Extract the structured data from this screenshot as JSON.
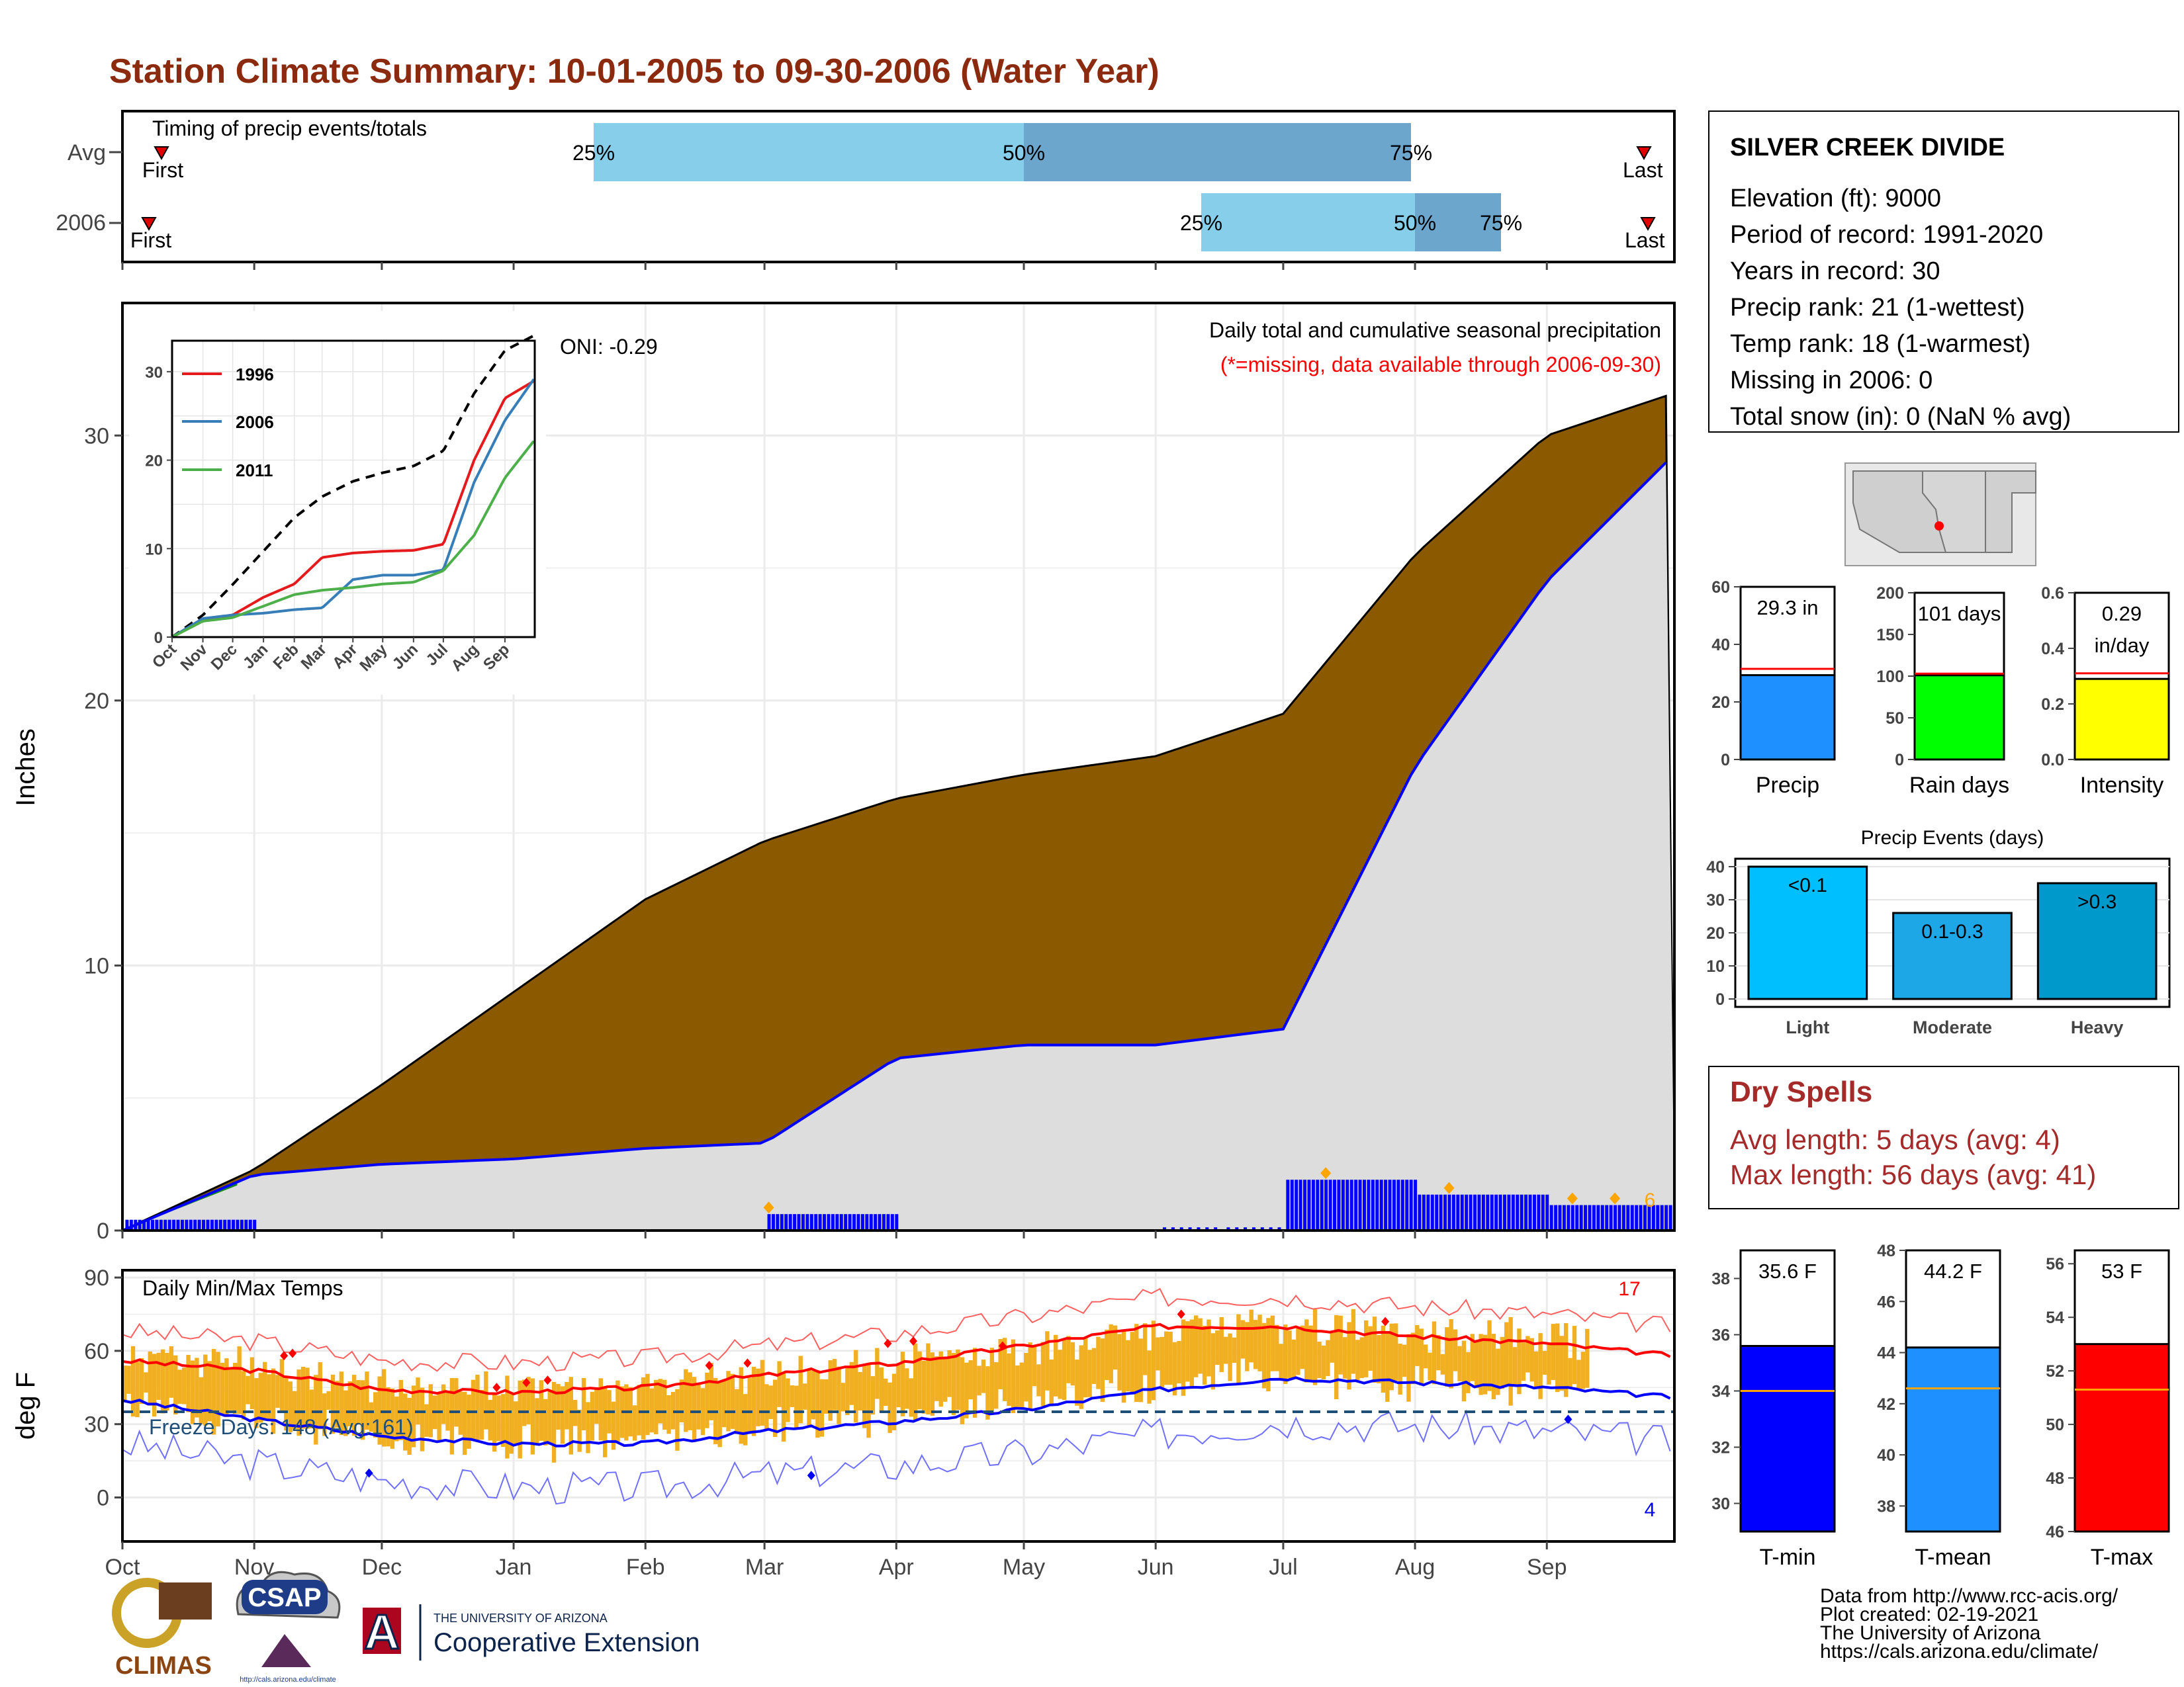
{
  "title": "Station Climate Summary: 10-01-2005 to 09-30-2006 (Water Year)",
  "colors": {
    "title": "#8B2A0E",
    "brown": "#8B5A00",
    "gray_fill": "#DDDDDD",
    "blue_line": "#0000FF",
    "green": "#1A8C1A",
    "light_blue": "#87CEEB",
    "mid_blue": "#6CA6CD",
    "orange": "#FFA500",
    "gold": "#F0B022",
    "red": "#FF0000",
    "dry_spell": "#A52A2A"
  },
  "timing": {
    "label": "Timing of precip events/totals",
    "rows": [
      {
        "name": "Avg",
        "first": "First",
        "last": "Last",
        "q25": "25%",
        "q50": "50%",
        "q75": "75%"
      },
      {
        "name": "2006",
        "first": "First",
        "last": "Last",
        "q25": "25%",
        "q50": "50%",
        "q75": "75%"
      }
    ]
  },
  "station": {
    "name": "SILVER CREEK DIVIDE",
    "lines": [
      "Elevation (ft): 9000",
      "Period of record: 1991-2020",
      "Years in record: 30",
      "Precip rank: 21 (1-wettest)",
      "Temp rank: 18 (1-warmest)",
      "Missing in 2006: 0",
      "Total snow (in): 0 (NaN % avg)"
    ]
  },
  "main_panel": {
    "ylabel": "Inches",
    "oni": "ONI: -0.29",
    "desc": "Daily total and cumulative seasonal precipitation",
    "missing_note": "(*=missing, data available through 2006-09-30)",
    "count_label": "6",
    "y_ticks": [
      "0",
      "10",
      "20",
      "30"
    ]
  },
  "inset": {
    "legend": [
      "1996",
      "2006",
      "2011"
    ],
    "y_ticks": [
      "0",
      "10",
      "20",
      "30"
    ],
    "x_ticks": [
      "Oct",
      "Nov",
      "Dec",
      "Jan",
      "Feb",
      "Mar",
      "Apr",
      "May",
      "Jun",
      "Jul",
      "Aug",
      "Sep"
    ]
  },
  "temp_panel": {
    "ylabel": "deg F",
    "label": "Daily Min/Max Temps",
    "freeze": "Freeze Days: 148 (Avg:161)",
    "hot_count": "17",
    "cold_count": "4",
    "y_ticks": [
      "0",
      "30",
      "60",
      "90"
    ]
  },
  "months": [
    "Oct",
    "Nov",
    "Dec",
    "Jan",
    "Feb",
    "Mar",
    "Apr",
    "May",
    "Jun",
    "Jul",
    "Aug",
    "Sep"
  ],
  "mini_bars": [
    {
      "title": "Precip",
      "label": "29.3 in",
      "ticks": [
        "0",
        "20",
        "40",
        "60"
      ],
      "color": "#1E90FF"
    },
    {
      "title": "Rain days",
      "label": "101 days",
      "ticks": [
        "0",
        "50",
        "100",
        "150",
        "200"
      ],
      "color": "#00FF00"
    },
    {
      "title": "Intensity",
      "label": "0.29 in/day",
      "ticks": [
        "0.0",
        "0.2",
        "0.4",
        "0.6"
      ],
      "color": "#FFFF00"
    }
  ],
  "events": {
    "title": "Precip Events (days)",
    "ticks": [
      "0",
      "10",
      "20",
      "30",
      "40"
    ],
    "bars": [
      {
        "cat": "Light",
        "label": "<0.1",
        "color": "#00BFFF"
      },
      {
        "cat": "Moderate",
        "label": "0.1-0.3",
        "color": "#1EA7E6"
      },
      {
        "cat": "Heavy",
        "label": ">0.3",
        "color": "#0099CC"
      }
    ]
  },
  "dry_spells": {
    "title": "Dry Spells",
    "avg": "Avg length: 5 days (avg: 4)",
    "max": "Max length: 56 days (avg: 41)"
  },
  "temp_bars": [
    {
      "title": "T-min",
      "label": "35.6 F",
      "ticks": [
        "30",
        "32",
        "34",
        "36",
        "38"
      ],
      "color": "#0000FF"
    },
    {
      "title": "T-mean",
      "label": "44.2 F",
      "ticks": [
        "38",
        "40",
        "42",
        "44",
        "46",
        "48"
      ],
      "color": "#1E90FF"
    },
    {
      "title": "T-max",
      "label": "53 F",
      "ticks": [
        "46",
        "48",
        "50",
        "52",
        "54",
        "56"
      ],
      "color": "#FF0000"
    }
  ],
  "footer": {
    "lines": [
      "Data from http://www.rcc-acis.org/",
      "Plot created: 02-19-2021",
      "The University of Arizona",
      "https://cals.arizona.edu/climate/"
    ]
  },
  "logos": {
    "climas": "CLIMAS",
    "csap": "CSAP",
    "csap_url": "http://cals.arizona.edu/climate",
    "ua_small": "THE UNIVERSITY OF ARIZONA",
    "ua_big": "Cooperative Extension",
    "ua_letter": "A"
  },
  "chart_data": [
    {
      "type": "area",
      "title": "Daily total and cumulative seasonal precipitation",
      "ylabel": "Inches",
      "ylim": [
        0,
        35
      ],
      "x": [
        "Oct",
        "Nov",
        "Dec",
        "Jan",
        "Feb",
        "Mar",
        "Apr",
        "May",
        "Jun",
        "Jul",
        "Aug",
        "Sep",
        "end"
      ],
      "series": [
        {
          "name": "Avg cumulative",
          "values": [
            0,
            2.3,
            5.5,
            9.0,
            12.5,
            14.7,
            16.3,
            17.2,
            17.9,
            19.5,
            25.5,
            30.0,
            31.6
          ]
        },
        {
          "name": "2006 cumulative",
          "values": [
            0,
            2.1,
            2.5,
            2.7,
            3.1,
            3.3,
            6.5,
            7.0,
            7.0,
            7.6,
            17.5,
            24.5,
            29.3
          ]
        }
      ]
    },
    {
      "type": "bar",
      "title": "Precip Events (days)",
      "categories": [
        "Light",
        "Moderate",
        "Heavy"
      ],
      "values": [
        40,
        26,
        35
      ],
      "ylim": [
        0,
        40
      ]
    },
    {
      "type": "bar",
      "title": "Precip",
      "categories": [
        "Precip"
      ],
      "values": [
        29.3
      ],
      "reference": 31.5,
      "ylim": [
        0,
        60
      ]
    },
    {
      "type": "bar",
      "title": "Rain days",
      "categories": [
        "Rain days"
      ],
      "values": [
        101
      ],
      "reference": 103,
      "ylim": [
        0,
        200
      ]
    },
    {
      "type": "bar",
      "title": "Intensity",
      "categories": [
        "Intensity"
      ],
      "values": [
        0.29
      ],
      "reference": 0.31,
      "ylim": [
        0,
        0.6
      ]
    },
    {
      "type": "bar",
      "title": "T-min",
      "categories": [
        "T-min"
      ],
      "values": [
        35.6
      ],
      "reference": 34.0,
      "ylim": [
        29,
        39
      ]
    },
    {
      "type": "bar",
      "title": "T-mean",
      "categories": [
        "T-mean"
      ],
      "values": [
        44.2
      ],
      "reference": 42.6,
      "ylim": [
        37,
        48
      ]
    },
    {
      "type": "bar",
      "title": "T-max",
      "categories": [
        "T-max"
      ],
      "values": [
        53
      ],
      "reference": 51.3,
      "ylim": [
        46,
        56.5
      ]
    },
    {
      "type": "line",
      "title": "Daily Min/Max Temps",
      "ylabel": "deg F",
      "ylim": [
        -18,
        93
      ],
      "x": [
        "Oct",
        "Nov",
        "Dec",
        "Jan",
        "Feb",
        "Mar",
        "Apr",
        "May",
        "Jun",
        "Jul",
        "Aug",
        "Sep",
        "end"
      ],
      "series": [
        {
          "name": "Avg max",
          "values": [
            56,
            52,
            44,
            43,
            45,
            50,
            55,
            62,
            70,
            70,
            66,
            63,
            58
          ]
        },
        {
          "name": "Avg min",
          "values": [
            40,
            32,
            25,
            22,
            22,
            27,
            31,
            36,
            44,
            49,
            47,
            45,
            41
          ]
        }
      ]
    }
  ]
}
